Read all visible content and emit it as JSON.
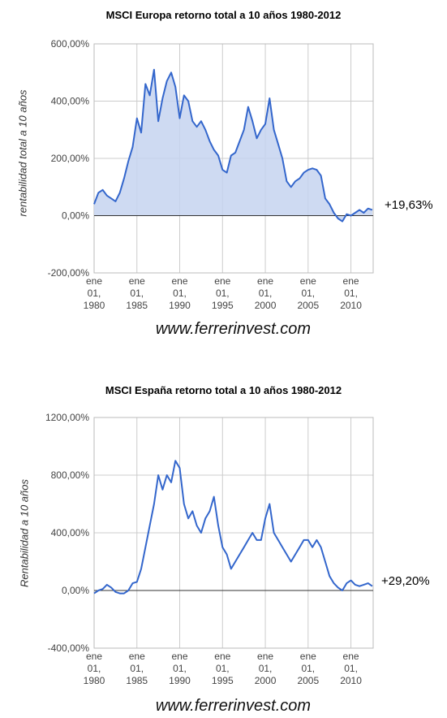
{
  "chart_data": [
    {
      "type": "area",
      "title": "MSCI Europa retorno total a 10 años 1980-2012",
      "ylabel": "rentabilidad total a 10 años",
      "xlabel": "",
      "y_ticks": [
        "600,00%",
        "400,00%",
        "200,00%",
        "0,00%",
        "-200,00%"
      ],
      "y_tick_values": [
        600,
        400,
        200,
        0,
        -200
      ],
      "ylim": [
        -200,
        600
      ],
      "x_ticks": [
        {
          "l1": "ene",
          "l2": "01,",
          "l3": "1980",
          "year": 1980
        },
        {
          "l1": "ene",
          "l2": "01,",
          "l3": "1985",
          "year": 1985
        },
        {
          "l1": "ene",
          "l2": "01,",
          "l3": "1990",
          "year": 1990
        },
        {
          "l1": "ene",
          "l2": "01,",
          "l3": "1995",
          "year": 1995
        },
        {
          "l1": "ene",
          "l2": "01,",
          "l3": "2000",
          "year": 2000
        },
        {
          "l1": "ene",
          "l2": "01,",
          "l3": "2005",
          "year": 2005
        },
        {
          "l1": "ene",
          "l2": "01,",
          "l3": "2010",
          "year": 2010
        }
      ],
      "xlim": [
        1980,
        2012.6
      ],
      "grid": true,
      "fill": true,
      "color": "#3366cc",
      "fill_color": "#c5d3f0",
      "end_label": "+19,63%",
      "watermark": "www.ferrerinvest.com",
      "x": [
        1980.0,
        1980.5,
        1981.0,
        1981.5,
        1982.0,
        1982.5,
        1983.0,
        1983.5,
        1984.0,
        1984.5,
        1985.0,
        1985.5,
        1986.0,
        1986.5,
        1987.0,
        1987.5,
        1988.0,
        1988.5,
        1989.0,
        1989.5,
        1990.0,
        1990.5,
        1991.0,
        1991.5,
        1992.0,
        1992.5,
        1993.0,
        1993.5,
        1994.0,
        1994.5,
        1995.0,
        1995.5,
        1996.0,
        1996.5,
        1997.0,
        1997.5,
        1998.0,
        1998.5,
        1999.0,
        1999.5,
        2000.0,
        2000.5,
        2001.0,
        2001.5,
        2002.0,
        2002.5,
        2003.0,
        2003.5,
        2004.0,
        2004.5,
        2005.0,
        2005.5,
        2006.0,
        2006.5,
        2007.0,
        2007.5,
        2008.0,
        2008.5,
        2009.0,
        2009.5,
        2010.0,
        2010.5,
        2011.0,
        2011.5,
        2012.0,
        2012.5
      ],
      "values": [
        40,
        80,
        90,
        70,
        60,
        50,
        80,
        130,
        190,
        240,
        340,
        290,
        460,
        420,
        510,
        330,
        410,
        470,
        500,
        450,
        340,
        420,
        400,
        330,
        310,
        330,
        300,
        260,
        230,
        210,
        160,
        150,
        210,
        220,
        260,
        300,
        380,
        330,
        270,
        300,
        320,
        410,
        300,
        250,
        200,
        120,
        100,
        120,
        130,
        150,
        160,
        165,
        160,
        140,
        60,
        40,
        10,
        -10,
        -20,
        5,
        0,
        10,
        20,
        10,
        25,
        20
      ]
    },
    {
      "type": "line",
      "title": "MSCI España retorno total a 10 años 1980-2012",
      "ylabel": "Rentabilidad a 10 años",
      "xlabel": "",
      "y_ticks": [
        "1200,00%",
        "800,00%",
        "400,00%",
        "0,00%",
        "-400,00%"
      ],
      "y_tick_values": [
        1200,
        800,
        400,
        0,
        -400
      ],
      "ylim": [
        -400,
        1200
      ],
      "x_ticks": [
        {
          "l1": "ene",
          "l2": "01,",
          "l3": "1980",
          "year": 1980
        },
        {
          "l1": "ene",
          "l2": "01,",
          "l3": "1985",
          "year": 1985
        },
        {
          "l1": "ene",
          "l2": "01,",
          "l3": "1990",
          "year": 1990
        },
        {
          "l1": "ene",
          "l2": "01,",
          "l3": "1995",
          "year": 1995
        },
        {
          "l1": "ene",
          "l2": "01,",
          "l3": "2000",
          "year": 2000
        },
        {
          "l1": "ene",
          "l2": "01,",
          "l3": "2005",
          "year": 2005
        },
        {
          "l1": "ene",
          "l2": "01,",
          "l3": "2010",
          "year": 2010
        }
      ],
      "xlim": [
        1980,
        2012.6
      ],
      "grid": true,
      "fill": false,
      "color": "#3366cc",
      "end_label": "+29,20%",
      "watermark": "www.ferrerinvest.com",
      "x": [
        1980.0,
        1980.5,
        1981.0,
        1981.5,
        1982.0,
        1982.5,
        1983.0,
        1983.5,
        1984.0,
        1984.5,
        1985.0,
        1985.5,
        1986.0,
        1986.5,
        1987.0,
        1987.5,
        1988.0,
        1988.5,
        1989.0,
        1989.5,
        1990.0,
        1990.5,
        1991.0,
        1991.5,
        1992.0,
        1992.5,
        1993.0,
        1993.5,
        1994.0,
        1994.5,
        1995.0,
        1995.5,
        1996.0,
        1996.5,
        1997.0,
        1997.5,
        1998.0,
        1998.5,
        1999.0,
        1999.5,
        2000.0,
        2000.5,
        2001.0,
        2001.5,
        2002.0,
        2002.5,
        2003.0,
        2003.5,
        2004.0,
        2004.5,
        2005.0,
        2005.5,
        2006.0,
        2006.5,
        2007.0,
        2007.5,
        2008.0,
        2008.5,
        2009.0,
        2009.5,
        2010.0,
        2010.5,
        2011.0,
        2011.5,
        2012.0,
        2012.5
      ],
      "values": [
        -20,
        0,
        10,
        40,
        20,
        -10,
        -20,
        -20,
        0,
        50,
        60,
        150,
        300,
        450,
        600,
        800,
        700,
        800,
        750,
        900,
        850,
        600,
        500,
        550,
        450,
        400,
        500,
        550,
        650,
        450,
        300,
        250,
        150,
        200,
        250,
        300,
        350,
        400,
        350,
        350,
        500,
        600,
        400,
        350,
        300,
        250,
        200,
        250,
        300,
        350,
        350,
        300,
        350,
        300,
        200,
        100,
        50,
        20,
        0,
        50,
        70,
        40,
        30,
        40,
        50,
        30
      ]
    }
  ]
}
